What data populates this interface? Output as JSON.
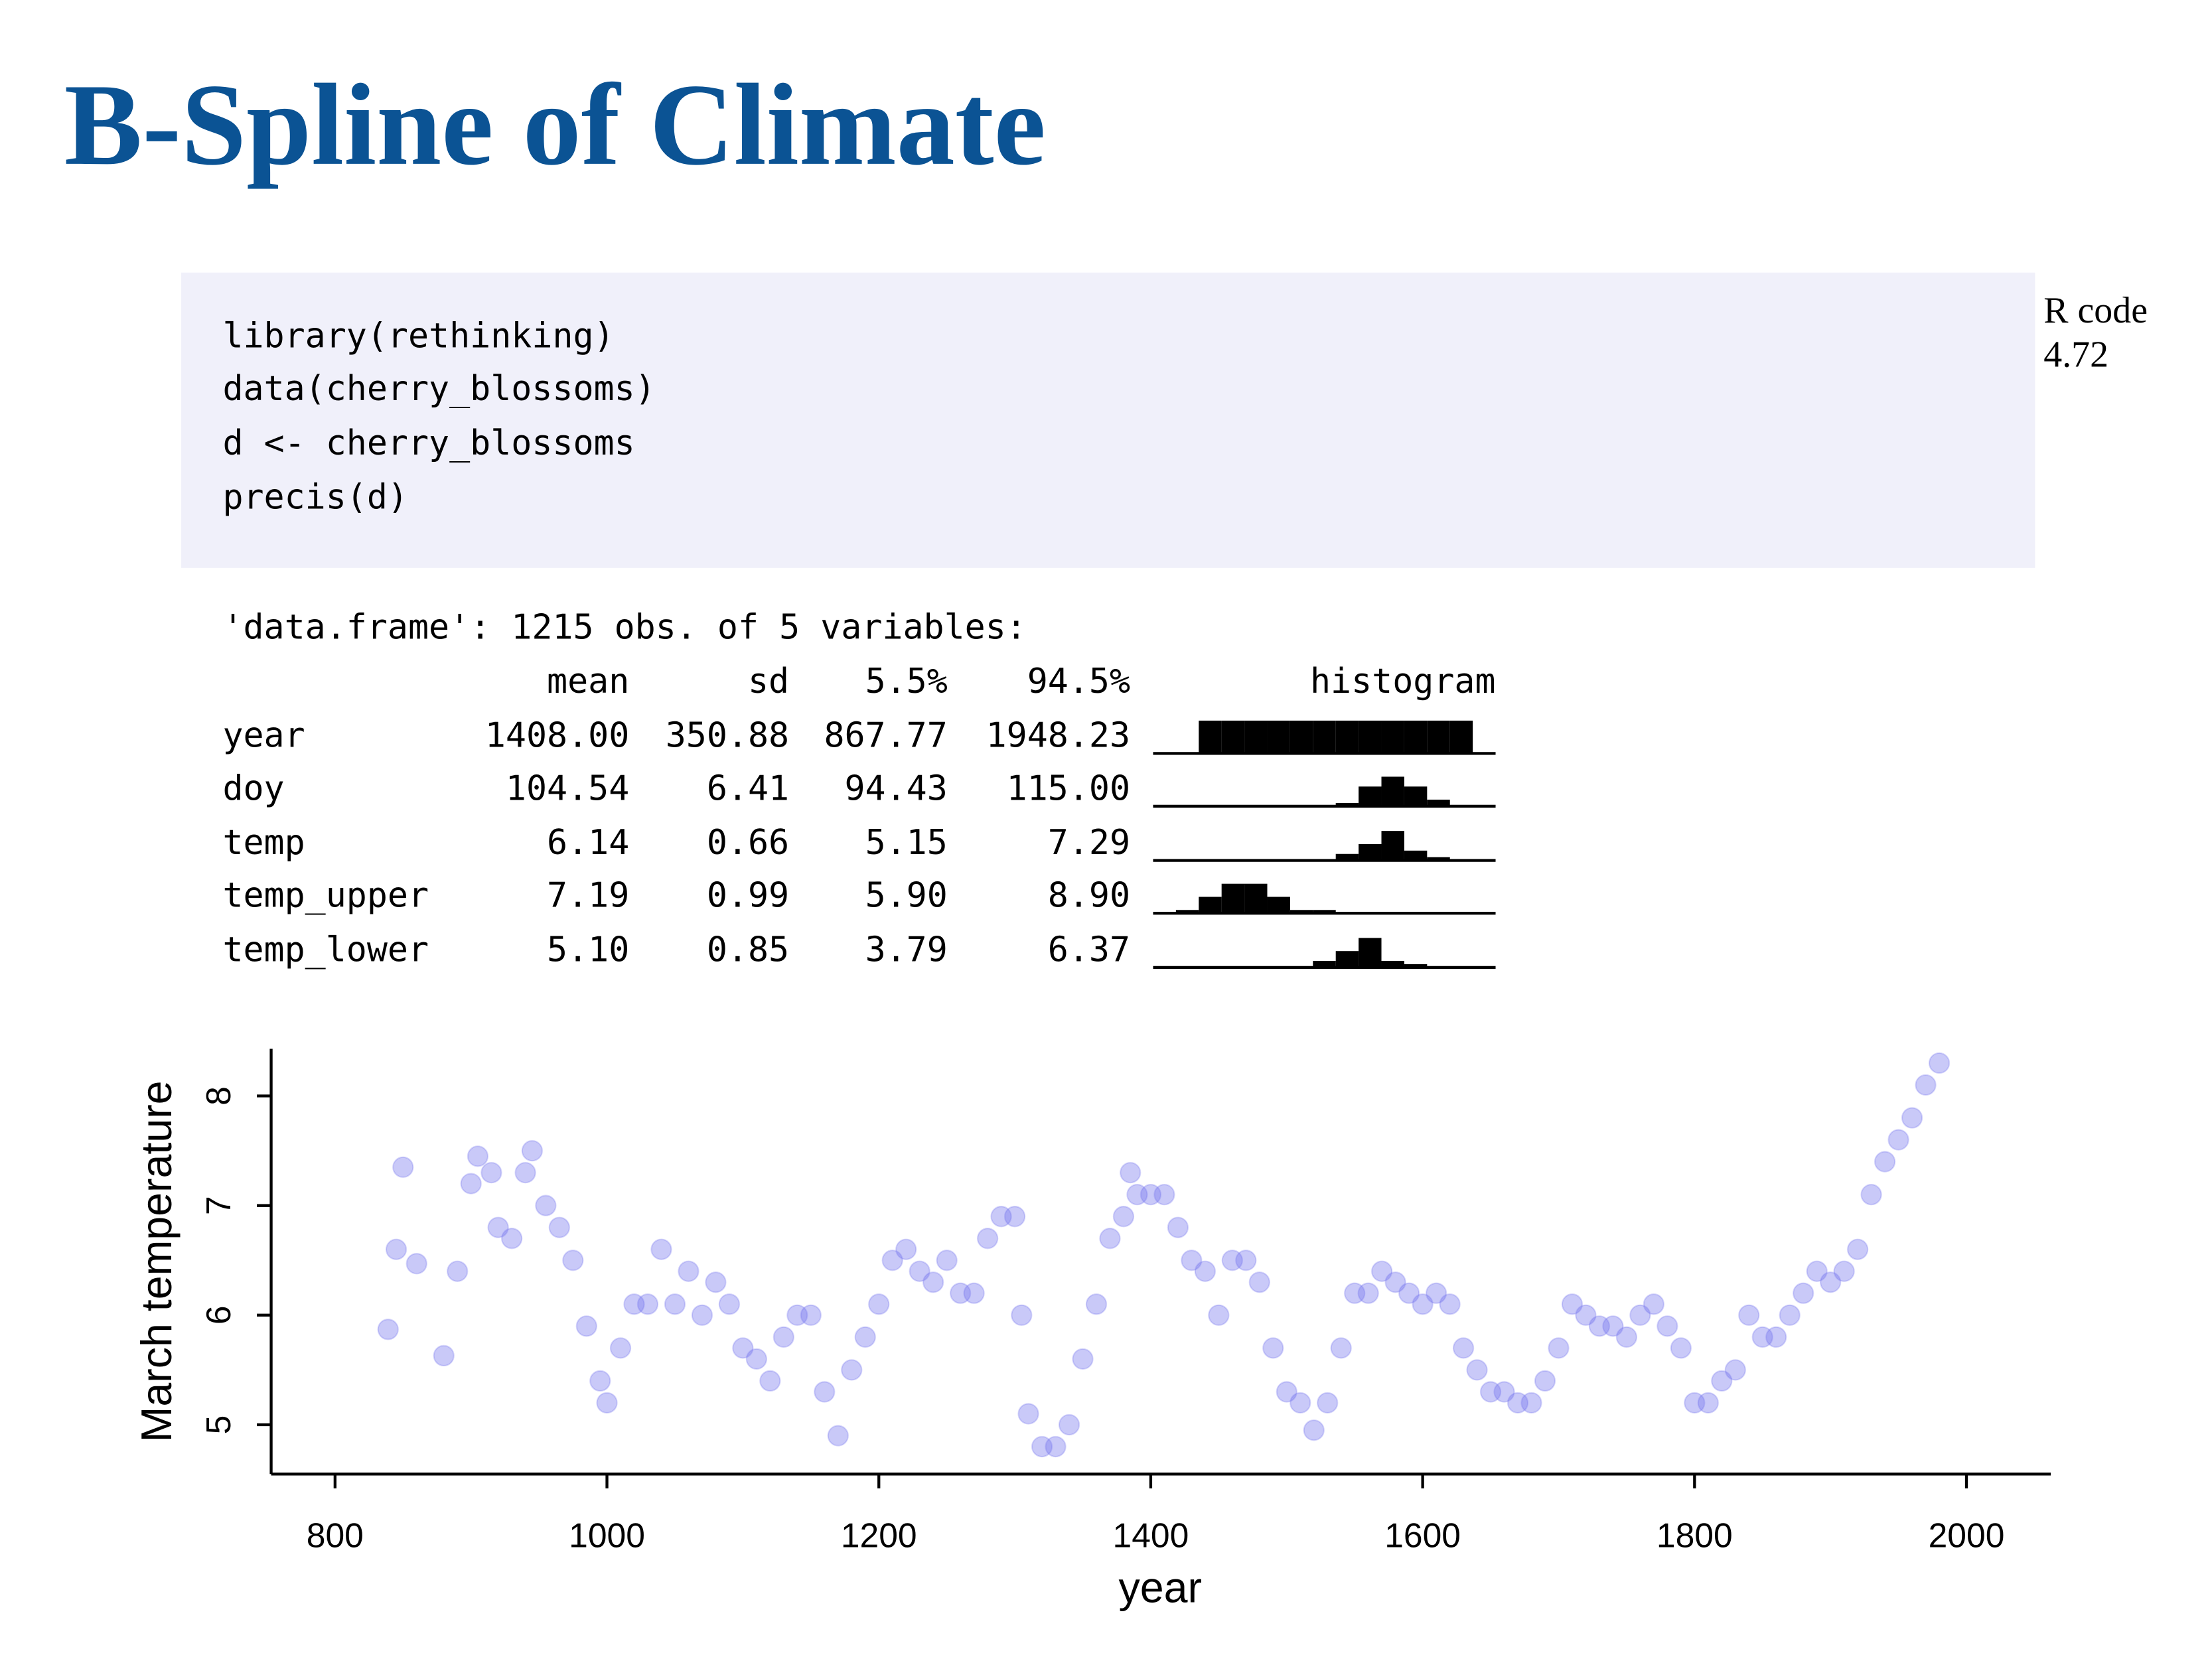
{
  "header": {
    "title": "B-Spline of Climate"
  },
  "code": {
    "lines": [
      "library(rethinking)",
      "data(cherry_blossoms)",
      "d <- cherry_blossoms",
      "precis(d)"
    ],
    "label": [
      "R code",
      "4.72"
    ]
  },
  "output": {
    "heading": "'data.frame': 1215 obs. of 5 variables:",
    "columns": [
      "mean",
      "sd",
      "5.5%",
      "94.5%",
      "histogram"
    ],
    "rows": [
      [
        "year",
        "1408.00",
        "350.88",
        "867.77",
        "1948.23"
      ],
      [
        "doy",
        "104.54",
        "6.41",
        "94.43",
        "115.00"
      ],
      [
        "temp",
        "6.14",
        "0.66",
        "5.15",
        "7.29"
      ],
      [
        "temp_upper",
        "7.19",
        "0.99",
        "5.90",
        "8.90"
      ],
      [
        "temp_lower",
        "5.10",
        "0.85",
        "3.79",
        "6.37"
      ]
    ],
    "histograms": [
      [
        0,
        0,
        10,
        10,
        10,
        10,
        10,
        10,
        10,
        10,
        10,
        10,
        10,
        10,
        0
      ],
      [
        0,
        0,
        0,
        0,
        0,
        0,
        0,
        0,
        1,
        6,
        9,
        6,
        2,
        0,
        0
      ],
      [
        0,
        0,
        0,
        0,
        0,
        0,
        0,
        0,
        2,
        5,
        9,
        3,
        1,
        0,
        0
      ],
      [
        0,
        1,
        5,
        9,
        9,
        5,
        1,
        1,
        0,
        0,
        0,
        0,
        0,
        0,
        0
      ],
      [
        0,
        0,
        0,
        0,
        0,
        0,
        0,
        2,
        5,
        9,
        2,
        1,
        0,
        0,
        0
      ]
    ]
  },
  "chart_data": {
    "type": "scatter",
    "xlabel": "year",
    "ylabel": "March temperature",
    "color": "#7777ee",
    "x": [
      839,
      845,
      850,
      860,
      880,
      890,
      900,
      905,
      915,
      920,
      930,
      940,
      945,
      955,
      965,
      975,
      985,
      995,
      1000,
      1010,
      1020,
      1030,
      1040,
      1050,
      1060,
      1070,
      1080,
      1090,
      1100,
      1110,
      1120,
      1130,
      1140,
      1150,
      1160,
      1170,
      1180,
      1190,
      1200,
      1210,
      1220,
      1230,
      1240,
      1250,
      1260,
      1270,
      1280,
      1290,
      1300,
      1305,
      1310,
      1320,
      1330,
      1340,
      1350,
      1360,
      1370,
      1380,
      1385,
      1390,
      1400,
      1410,
      1420,
      1430,
      1440,
      1450,
      1460,
      1470,
      1480,
      1490,
      1500,
      1510,
      1520,
      1530,
      1540,
      1550,
      1560,
      1570,
      1580,
      1590,
      1600,
      1610,
      1620,
      1630,
      1640,
      1650,
      1660,
      1670,
      1680,
      1690,
      1700,
      1710,
      1720,
      1730,
      1740,
      1750,
      1760,
      1770,
      1780,
      1790,
      1800,
      1810,
      1820,
      1830,
      1840,
      1850,
      1860,
      1870,
      1880,
      1890,
      1900,
      1910,
      1920,
      1930,
      1940,
      1950,
      1960,
      1970,
      1980
    ],
    "values": [
      5.87,
      6.6,
      7.35,
      6.47,
      5.63,
      6.4,
      7.2,
      7.45,
      7.3,
      6.8,
      6.7,
      7.3,
      7.5,
      7.0,
      6.8,
      6.5,
      5.9,
      5.4,
      5.2,
      5.7,
      6.1,
      6.1,
      6.6,
      6.1,
      6.4,
      6.0,
      6.3,
      6.1,
      5.7,
      5.6,
      5.4,
      5.8,
      6.0,
      6.0,
      5.3,
      4.9,
      5.5,
      5.8,
      6.1,
      6.5,
      6.6,
      6.4,
      6.3,
      6.5,
      6.2,
      6.2,
      6.7,
      6.9,
      6.9,
      6.0,
      5.1,
      4.8,
      4.8,
      5.0,
      5.6,
      6.1,
      6.7,
      6.9,
      7.3,
      7.1,
      7.1,
      7.1,
      6.8,
      6.5,
      6.4,
      6.0,
      6.5,
      6.5,
      6.3,
      5.7,
      5.3,
      5.2,
      4.95,
      5.2,
      5.7,
      6.2,
      6.2,
      6.4,
      6.3,
      6.2,
      6.1,
      6.2,
      6.1,
      5.7,
      5.5,
      5.3,
      5.3,
      5.2,
      5.2,
      5.4,
      5.7,
      6.1,
      6.0,
      5.9,
      5.9,
      5.8,
      6.0,
      6.1,
      5.9,
      5.7,
      5.2,
      5.2,
      5.4,
      5.5,
      6.0,
      5.8,
      5.8,
      6.0,
      6.2,
      6.4,
      6.3,
      6.4,
      6.6,
      7.1,
      7.4,
      7.6,
      7.8,
      8.1,
      8.3
    ],
    "xlim": [
      753,
      2062
    ],
    "ylim": [
      4.55,
      8.43
    ],
    "xticks": [
      800,
      1000,
      1200,
      1400,
      1600,
      1800,
      2000
    ],
    "yticks": [
      5,
      6,
      7,
      8
    ],
    "grid": false
  }
}
